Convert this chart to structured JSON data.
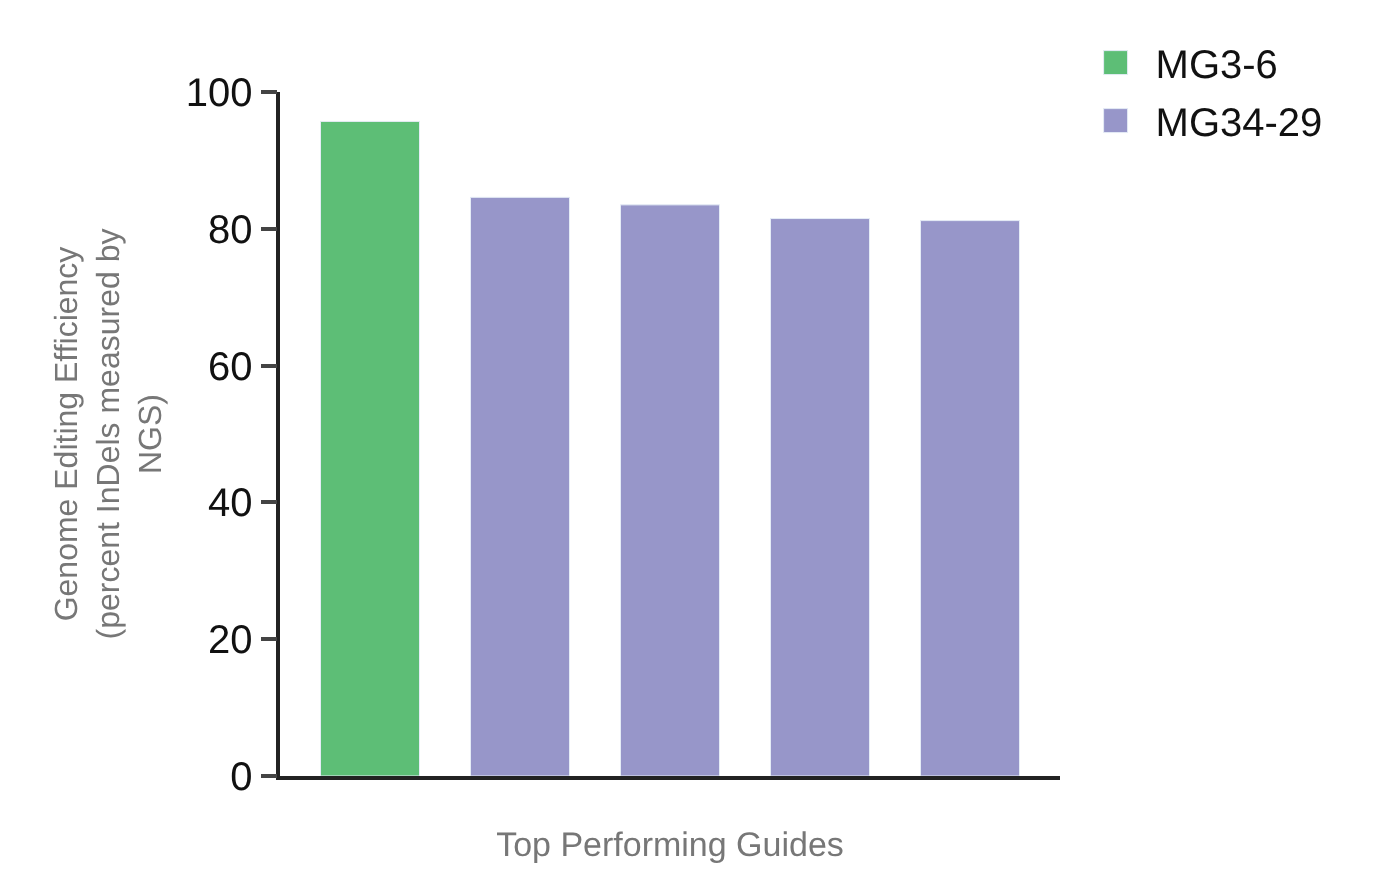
{
  "chart_data": {
    "type": "bar",
    "xlabel": "Top Performing Guides",
    "ylabel": "Genome Editing Efficiency (percent InDels measured by NGS)",
    "categories": [
      null,
      null,
      null,
      null,
      null
    ],
    "series": [
      {
        "name": "MG3-6",
        "color": "#5dbe76",
        "values": [
          95.7,
          null,
          null,
          null,
          null
        ]
      },
      {
        "name": "MG34-29",
        "color": "#9796c9",
        "values": [
          null,
          84.6,
          83.5,
          81.5,
          81.2
        ]
      }
    ],
    "ylim": [
      0,
      100
    ],
    "yticks": [
      0,
      20,
      40,
      60,
      80,
      100
    ],
    "legend": "top right"
  }
}
